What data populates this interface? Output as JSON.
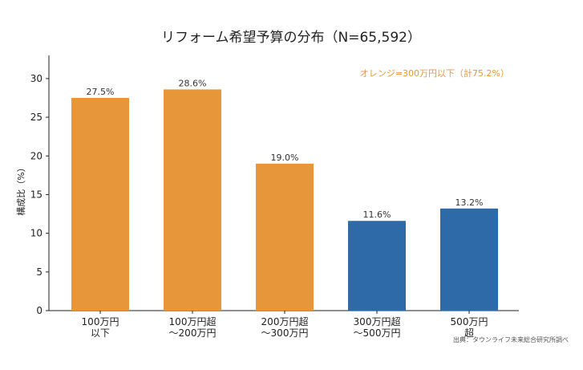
{
  "chart_data": {
    "type": "bar",
    "title": "リフォーム希望予算の分布（N=65,592）",
    "ylabel": "構成比（%）",
    "xlabel": "",
    "ylim": [
      0,
      33
    ],
    "yticks": [
      0,
      5,
      10,
      15,
      20,
      25,
      30
    ],
    "grid": false,
    "categories": [
      [
        "100万円",
        "以下"
      ],
      [
        "100万円超",
        "～200万円"
      ],
      [
        "200万円超",
        "～300万円"
      ],
      [
        "300万円超",
        "～500万円"
      ],
      [
        "500万円",
        "超"
      ]
    ],
    "values": [
      27.5,
      28.6,
      19.0,
      11.6,
      13.2
    ],
    "value_labels": [
      "27.5%",
      "28.6%",
      "19.0%",
      "11.6%",
      "13.2%"
    ],
    "bar_colors": [
      "#E8963A",
      "#E8963A",
      "#E8963A",
      "#2E6AA8",
      "#2E6AA8"
    ],
    "annotation": "オレンジ=300万円以下（計75.2%）",
    "annotation_color": "#E8963A",
    "source": "出典：タウンライフ未来総合研究所調べ"
  }
}
